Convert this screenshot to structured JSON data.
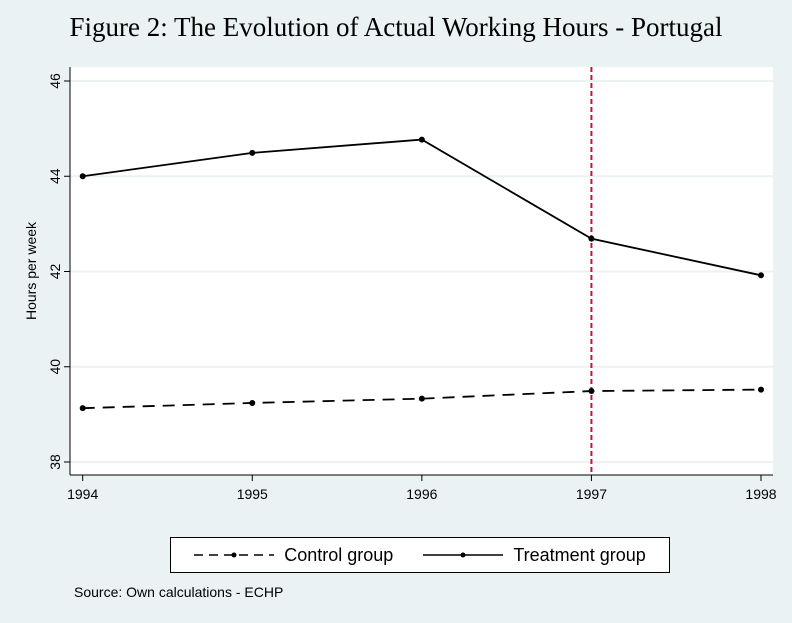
{
  "chart_data": {
    "type": "line",
    "title": "Figure 2: The Evolution of Actual Working Hours - Portugal",
    "xlabel": "",
    "ylabel": "Hours per week",
    "x": [
      1994,
      1995,
      1996,
      1997,
      1998
    ],
    "xticks": [
      "1994",
      "1995",
      "1996",
      "1997",
      "1998"
    ],
    "yticks": [
      "38",
      "40",
      "42",
      "44",
      "46"
    ],
    "ylim": [
      38,
      46
    ],
    "grid": true,
    "series": [
      {
        "name": "Control group",
        "style": "dashed",
        "color": "#000000",
        "values": [
          39.13,
          39.24,
          39.33,
          39.49,
          39.52
        ]
      },
      {
        "name": "Treatment group",
        "style": "solid",
        "color": "#000000",
        "values": [
          44.0,
          44.49,
          44.77,
          42.69,
          41.92
        ]
      }
    ],
    "vline": {
      "x": 1997,
      "color": "#c0143c",
      "style": "dashed"
    },
    "legend_position": "bottom",
    "note": "Source: Own calculations - ECHP"
  }
}
